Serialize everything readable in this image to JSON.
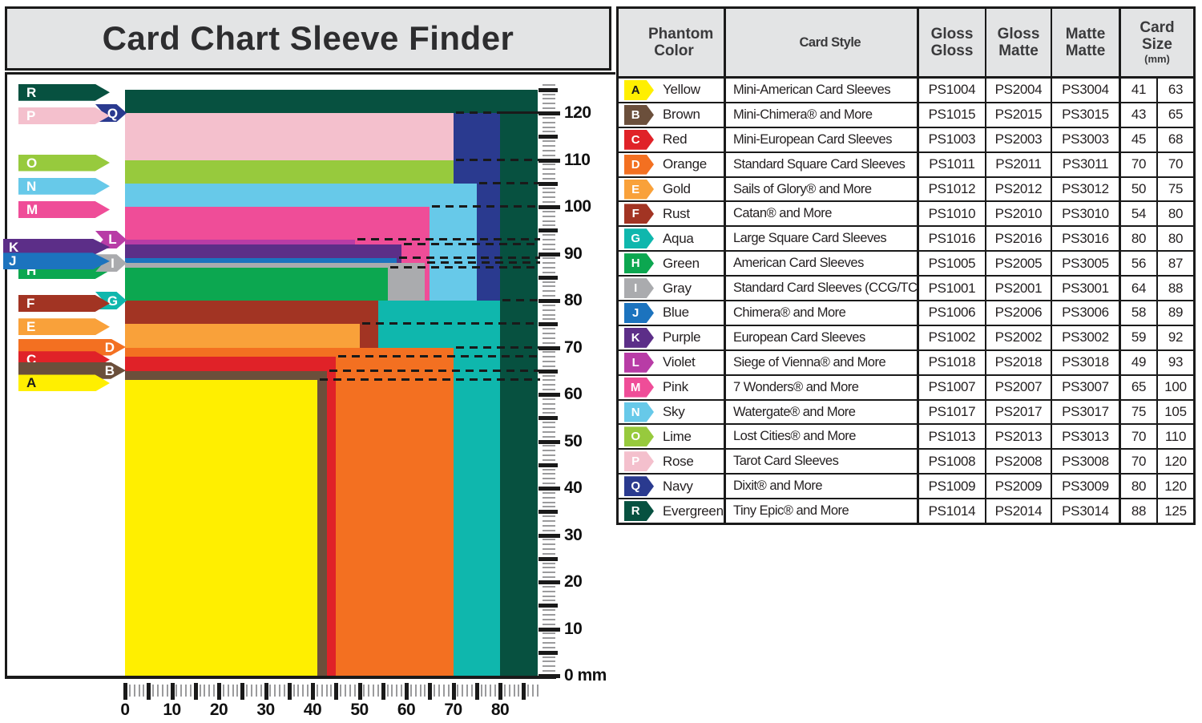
{
  "title": "Card Chart Sleeve Finder",
  "ui_colors": {
    "background": "#FFFFFF",
    "panel_gray": "#E3E4E5",
    "border": "#1A1A1A",
    "tick_minor": "#9B9B9D",
    "tick_major": "#1A1A1A",
    "dash_line": "#1A1A1A"
  },
  "table": {
    "headers": {
      "phantom_color": "Phantom Color",
      "card_style": "Card Style",
      "gloss_gloss": "Gloss Gloss",
      "gloss_matte": "Gloss Matte",
      "matte_matte": "Matte Matte",
      "card_size": "Card Size",
      "card_size_unit": "(mm)"
    },
    "rows": [
      {
        "letter": "A",
        "color_name": "Yellow",
        "hex": "#FFEF00",
        "letter_color": "#1A1A1A",
        "card_style": "Mini-American Card Sleeves",
        "gloss_gloss": "PS1004",
        "gloss_matte": "PS2004",
        "matte_matte": "PS3004",
        "width_mm": 41,
        "height_mm": 63
      },
      {
        "letter": "B",
        "color_name": "Brown",
        "hex": "#6B4F3B",
        "letter_color": "#FFFFFF",
        "card_style": "Mini-Chimera® and More",
        "gloss_gloss": "PS1015",
        "gloss_matte": "PS2015",
        "matte_matte": "PS3015",
        "width_mm": 43,
        "height_mm": 65
      },
      {
        "letter": "C",
        "color_name": "Red",
        "hex": "#E02228",
        "letter_color": "#FFFFFF",
        "card_style": "Mini-European Card Sleeves",
        "gloss_gloss": "PS1003",
        "gloss_matte": "PS2003",
        "matte_matte": "PS3003",
        "width_mm": 45,
        "height_mm": 68
      },
      {
        "letter": "D",
        "color_name": "Orange",
        "hex": "#F37021",
        "letter_color": "#FFFFFF",
        "card_style": "Standard Square Card Sleeves",
        "gloss_gloss": "PS1011",
        "gloss_matte": "PS2011",
        "matte_matte": "PS3011",
        "width_mm": 70,
        "height_mm": 70
      },
      {
        "letter": "E",
        "color_name": "Gold",
        "hex": "#F9A13A",
        "letter_color": "#FFFFFF",
        "card_style": "Sails of Glory® and More",
        "gloss_gloss": "PS1012",
        "gloss_matte": "PS2012",
        "matte_matte": "PS3012",
        "width_mm": 50,
        "height_mm": 75
      },
      {
        "letter": "F",
        "color_name": "Rust",
        "hex": "#A23423",
        "letter_color": "#FFFFFF",
        "card_style": "Catan® and More",
        "gloss_gloss": "PS1010",
        "gloss_matte": "PS2010",
        "matte_matte": "PS3010",
        "width_mm": 54,
        "height_mm": 80
      },
      {
        "letter": "G",
        "color_name": "Aqua",
        "hex": "#0FB7AD",
        "letter_color": "#FFFFFF",
        "card_style": "Large Square Card Sleeves",
        "gloss_gloss": "PS1016",
        "gloss_matte": "PS2016",
        "matte_matte": "PS3016",
        "width_mm": 80,
        "height_mm": 80
      },
      {
        "letter": "H",
        "color_name": "Green",
        "hex": "#0CA750",
        "letter_color": "#FFFFFF",
        "card_style": "American Card Sleeves",
        "gloss_gloss": "PS1005",
        "gloss_matte": "PS2005",
        "matte_matte": "PS3005",
        "width_mm": 56,
        "height_mm": 87
      },
      {
        "letter": "I",
        "color_name": "Gray",
        "hex": "#AAABAE",
        "letter_color": "#FFFFFF",
        "card_style": "Standard Card Sleeves (CCG/TCG)",
        "gloss_gloss": "PS1001",
        "gloss_matte": "PS2001",
        "matte_matte": "PS3001",
        "width_mm": 64,
        "height_mm": 88
      },
      {
        "letter": "J",
        "color_name": "Blue",
        "hex": "#1C73BE",
        "letter_color": "#FFFFFF",
        "card_style": "Chimera® and More",
        "gloss_gloss": "PS1006",
        "gloss_matte": "PS2006",
        "matte_matte": "PS3006",
        "width_mm": 58,
        "height_mm": 89
      },
      {
        "letter": "K",
        "color_name": "Purple",
        "hex": "#5C2E88",
        "letter_color": "#FFFFFF",
        "card_style": "European Card Sleeves",
        "gloss_gloss": "PS1002",
        "gloss_matte": "PS2002",
        "matte_matte": "PS3002",
        "width_mm": 59,
        "height_mm": 92
      },
      {
        "letter": "L",
        "color_name": "Violet",
        "hex": "#B83CA6",
        "letter_color": "#FFFFFF",
        "card_style": "Siege of Vienna® and More",
        "gloss_gloss": "PS1018",
        "gloss_matte": "PS2018",
        "matte_matte": "PS3018",
        "width_mm": 49,
        "height_mm": 93
      },
      {
        "letter": "M",
        "color_name": "Pink",
        "hex": "#EF4D98",
        "letter_color": "#FFFFFF",
        "card_style": "7 Wonders® and More",
        "gloss_gloss": "PS1007",
        "gloss_matte": "PS2007",
        "matte_matte": "PS3007",
        "width_mm": 65,
        "height_mm": 100
      },
      {
        "letter": "N",
        "color_name": "Sky",
        "hex": "#67C9E9",
        "letter_color": "#FFFFFF",
        "card_style": "Watergate® and More",
        "gloss_gloss": "PS1017",
        "gloss_matte": "PS2017",
        "matte_matte": "PS3017",
        "width_mm": 75,
        "height_mm": 105
      },
      {
        "letter": "O",
        "color_name": "Lime",
        "hex": "#97CA3D",
        "letter_color": "#FFFFFF",
        "card_style": "Lost Cities® and More",
        "gloss_gloss": "PS1013",
        "gloss_matte": "PS2013",
        "matte_matte": "PS3013",
        "width_mm": 70,
        "height_mm": 110
      },
      {
        "letter": "P",
        "color_name": "Rose",
        "hex": "#F4C0CD",
        "letter_color": "#FFFFFF",
        "card_style": "Tarot Card Sleeves",
        "gloss_gloss": "PS1008",
        "gloss_matte": "PS2008",
        "matte_matte": "PS3008",
        "width_mm": 70,
        "height_mm": 120
      },
      {
        "letter": "Q",
        "color_name": "Navy",
        "hex": "#2A3A8F",
        "letter_color": "#FFFFFF",
        "card_style": "Dixit® and More",
        "gloss_gloss": "PS1009",
        "gloss_matte": "PS2009",
        "matte_matte": "PS3009",
        "width_mm": 80,
        "height_mm": 120
      },
      {
        "letter": "R",
        "color_name": "Evergreen",
        "hex": "#075140",
        "letter_color": "#FFFFFF",
        "card_style": "Tiny Epic® and More",
        "gloss_gloss": "PS1014",
        "gloss_matte": "PS2014",
        "matte_matte": "PS3014",
        "width_mm": 88,
        "height_mm": 125
      }
    ]
  },
  "chart_data": {
    "type": "nested-rectangles",
    "title": "Card Chart Sleeve Finder",
    "unit": "mm",
    "x_axis": {
      "min": 0,
      "max": 88,
      "minor_tick_mm": 1,
      "major_tick_mm": 5,
      "label_step_mm": 10,
      "labels": [
        "0",
        "10",
        "20",
        "30",
        "40",
        "50",
        "60",
        "70",
        "80"
      ]
    },
    "y_axis": {
      "min": 0,
      "max": 126,
      "minor_tick_mm": 1,
      "major_tick_mm": 5,
      "label_step_mm": 10,
      "zero_label": "0 mm",
      "labels": [
        "0 mm",
        "10",
        "20",
        "30",
        "40",
        "50",
        "60",
        "70",
        "80",
        "90",
        "100",
        "110",
        "120"
      ]
    },
    "cards": [
      {
        "letter": "A",
        "color": "Yellow",
        "hex": "#FFEF00",
        "letter_color": "#1A1A1A",
        "width_mm": 41,
        "height_mm": 63
      },
      {
        "letter": "B",
        "color": "Brown",
        "hex": "#6B4F3B",
        "letter_color": "#FFFFFF",
        "width_mm": 43,
        "height_mm": 65
      },
      {
        "letter": "C",
        "color": "Red",
        "hex": "#E02228",
        "letter_color": "#FFFFFF",
        "width_mm": 45,
        "height_mm": 68
      },
      {
        "letter": "D",
        "color": "Orange",
        "hex": "#F37021",
        "letter_color": "#FFFFFF",
        "width_mm": 70,
        "height_mm": 70
      },
      {
        "letter": "E",
        "color": "Gold",
        "hex": "#F9A13A",
        "letter_color": "#FFFFFF",
        "width_mm": 50,
        "height_mm": 75
      },
      {
        "letter": "F",
        "color": "Rust",
        "hex": "#A23423",
        "letter_color": "#FFFFFF",
        "width_mm": 54,
        "height_mm": 80,
        "dash": false
      },
      {
        "letter": "G",
        "color": "Aqua",
        "hex": "#0FB7AD",
        "letter_color": "#FFFFFF",
        "width_mm": 80,
        "height_mm": 80
      },
      {
        "letter": "H",
        "color": "Green",
        "hex": "#0CA750",
        "letter_color": "#FFFFFF",
        "width_mm": 56,
        "height_mm": 87
      },
      {
        "letter": "I",
        "color": "Gray",
        "hex": "#AAABAE",
        "letter_color": "#FFFFFF",
        "width_mm": 64,
        "height_mm": 88
      },
      {
        "letter": "J",
        "color": "Blue",
        "hex": "#1C73BE",
        "letter_color": "#FFFFFF",
        "width_mm": 58,
        "height_mm": 89
      },
      {
        "letter": "K",
        "color": "Purple",
        "hex": "#5C2E88",
        "letter_color": "#FFFFFF",
        "width_mm": 59,
        "height_mm": 92
      },
      {
        "letter": "L",
        "color": "Violet",
        "hex": "#B83CA6",
        "letter_color": "#FFFFFF",
        "width_mm": 49,
        "height_mm": 93
      },
      {
        "letter": "M",
        "color": "Pink",
        "hex": "#EF4D98",
        "letter_color": "#FFFFFF",
        "width_mm": 65,
        "height_mm": 100
      },
      {
        "letter": "N",
        "color": "Sky",
        "hex": "#67C9E9",
        "letter_color": "#FFFFFF",
        "width_mm": 75,
        "height_mm": 105
      },
      {
        "letter": "O",
        "color": "Lime",
        "hex": "#97CA3D",
        "letter_color": "#FFFFFF",
        "width_mm": 70,
        "height_mm": 110
      },
      {
        "letter": "P",
        "color": "Rose",
        "hex": "#F4C0CD",
        "letter_color": "#FFFFFF",
        "width_mm": 70,
        "height_mm": 120
      },
      {
        "letter": "Q",
        "color": "Navy",
        "hex": "#2A3A8F",
        "letter_color": "#FFFFFF",
        "width_mm": 80,
        "height_mm": 120
      },
      {
        "letter": "R",
        "color": "Evergreen",
        "hex": "#075140",
        "letter_color": "#FFFFFF",
        "width_mm": 88,
        "height_mm": 125
      }
    ],
    "draw_order": [
      "R",
      "Q",
      "P",
      "O",
      "N",
      "M",
      "L",
      "K",
      "J",
      "I",
      "H",
      "G",
      "F",
      "E",
      "D",
      "C",
      "B",
      "A"
    ],
    "label_rows": [
      {
        "front": "R"
      },
      {
        "front": "P",
        "back": "Q",
        "back_type": "chip"
      },
      {
        "front": "O"
      },
      {
        "front": "N"
      },
      {
        "front": "M"
      },
      {
        "front": "K",
        "back": "L",
        "back_type": "chip",
        "wide": true
      },
      {
        "front": "H"
      },
      {
        "front": "J",
        "back": "I",
        "back_type": "chip",
        "wide": true
      },
      {
        "front": "F",
        "back": "G",
        "back_type": "chip"
      },
      {
        "front": "E"
      },
      {
        "front": "C",
        "back": "D",
        "back_type": "arrow"
      },
      {
        "front": "A",
        "back": "B",
        "back_type": "arrow"
      }
    ]
  }
}
